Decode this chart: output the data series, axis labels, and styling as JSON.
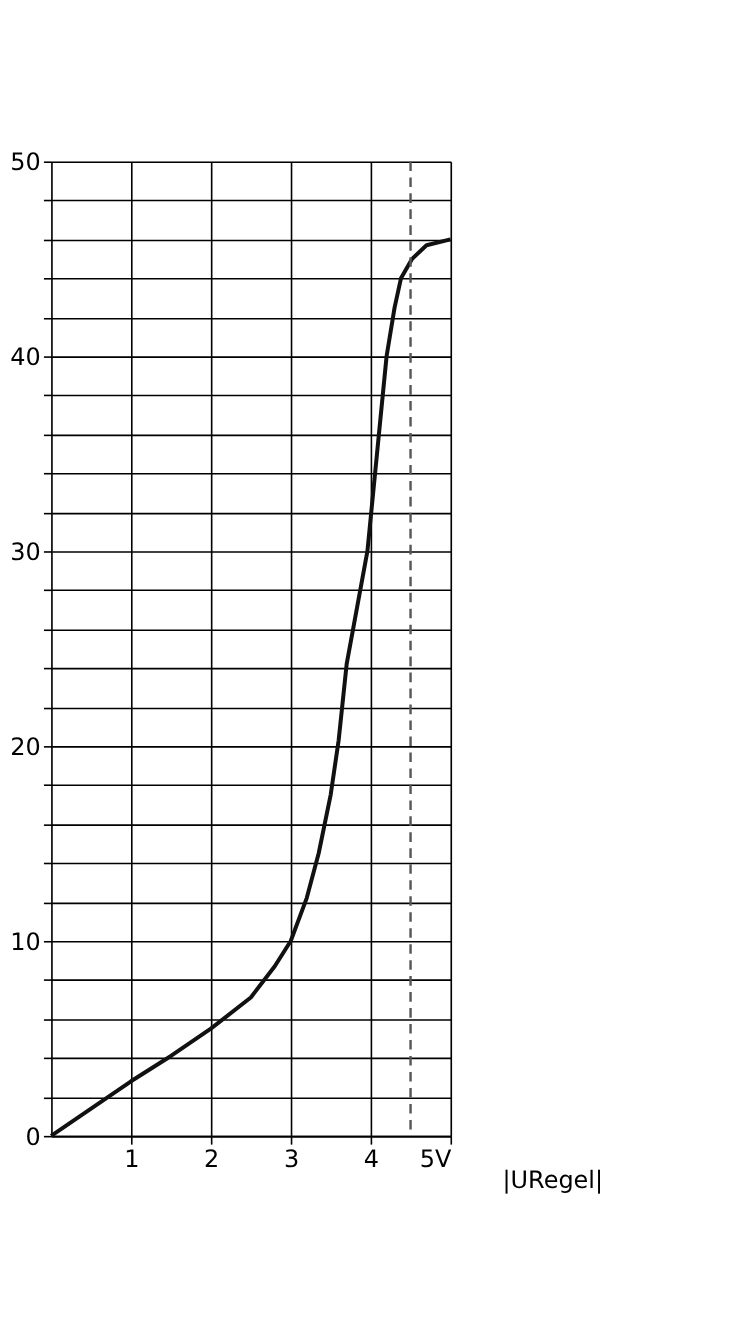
{
  "chart_data": {
    "type": "line",
    "xlabel": "|URegel|",
    "x": [
      0,
      0.5,
      1,
      1.5,
      2,
      2.5,
      2.8,
      3,
      3.2,
      3.35,
      3.5,
      3.6,
      3.7,
      3.83,
      3.96,
      4.08,
      4.2,
      4.3,
      4.38,
      4.52,
      4.7,
      5
    ],
    "series": [
      {
        "color": "#111111",
        "values": [
          0,
          1.4,
          2.8,
          4.1,
          5.5,
          7.1,
          8.7,
          10,
          12.2,
          14.5,
          17.5,
          20.3,
          24.2,
          27.1,
          30,
          35,
          40,
          42.5,
          44,
          45,
          45.7,
          46
        ]
      }
    ],
    "xlim": [
      0,
      5
    ],
    "ylim": [
      0,
      50
    ],
    "xticks": [
      1,
      2,
      3,
      4,
      {
        "value": 5,
        "label": "5V"
      }
    ],
    "yticks": [
      0,
      {
        "value": 2,
        "label": null
      },
      {
        "value": 4,
        "label": null
      },
      {
        "value": 6,
        "label": null
      },
      {
        "value": 8,
        "label": null
      },
      10,
      {
        "value": 12,
        "label": null
      },
      {
        "value": 14,
        "label": null
      },
      {
        "value": 16,
        "label": null
      },
      {
        "value": 18,
        "label": null
      },
      20,
      {
        "value": 22,
        "label": null
      },
      {
        "value": 24,
        "label": null
      },
      {
        "value": 26,
        "label": null
      },
      {
        "value": 28,
        "label": null
      },
      30,
      {
        "value": 32,
        "label": null
      },
      {
        "value": 34,
        "label": null
      },
      {
        "value": 36,
        "label": null
      },
      {
        "value": 38,
        "label": null
      },
      40,
      {
        "value": 42,
        "label": null
      },
      {
        "value": 44,
        "label": null
      },
      {
        "value": 46,
        "label": null
      },
      {
        "value": 48,
        "label": null
      },
      50
    ],
    "ref_lines": [
      {
        "axis": "x",
        "value": 4.5,
        "color": "#555555",
        "line_style": "dashed"
      }
    ],
    "grid": true,
    "marker": "none",
    "line_style": "solid"
  }
}
